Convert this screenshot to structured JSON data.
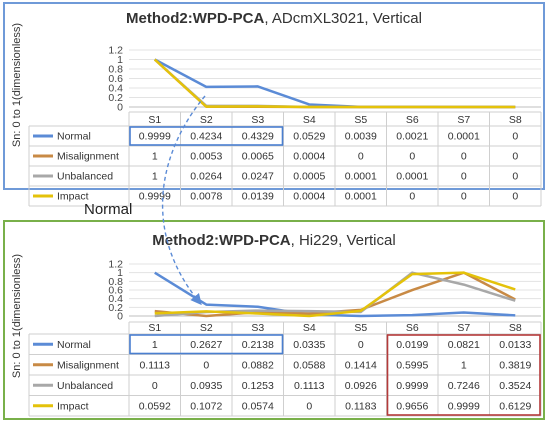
{
  "annotations": {
    "normal_label": "Normal"
  },
  "colors": {
    "Normal": "#5b8bd6",
    "Misalignment": "#c88a45",
    "Unbalanced": "#a8a8a8",
    "Impact": "#e4c20a",
    "highlight_blue": "#4a7fd0",
    "highlight_red": "#b53a3a"
  },
  "chart_data": [
    {
      "type": "line",
      "title_bold": "Method2:WPD-PCA",
      "title_rest": ", ADcmXL3021, Vertical",
      "ylabel": "Sn: 0  to 1(dimensionless)",
      "categories": [
        "S1",
        "S2",
        "S3",
        "S4",
        "S5",
        "S6",
        "S7",
        "S8"
      ],
      "yticks": [
        "1.2",
        "1",
        "0.8",
        "0.6",
        "0.4",
        "0.2",
        "0"
      ],
      "ylim": [
        0,
        1.2
      ],
      "series": [
        {
          "name": "Normal",
          "values": [
            0.9999,
            0.4234,
            0.4329,
            0.0529,
            0.0039,
            0.0021,
            0.0001,
            0
          ],
          "labels": [
            "0.9999",
            "0.4234",
            "0.4329",
            "0.0529",
            "0.0039",
            "0.0021",
            "0.0001",
            "0"
          ]
        },
        {
          "name": "Misalignment",
          "values": [
            1,
            0.0053,
            0.0065,
            0.0004,
            0,
            0,
            0,
            0
          ],
          "labels": [
            "1",
            "0.0053",
            "0.0065",
            "0.0004",
            "0",
            "0",
            "0",
            "0"
          ]
        },
        {
          "name": "Unbalanced",
          "values": [
            1,
            0.0264,
            0.0247,
            0.0005,
            0.0001,
            0.0001,
            0,
            0
          ],
          "labels": [
            "1",
            "0.0264",
            "0.0247",
            "0.0005",
            "0.0001",
            "0.0001",
            "0",
            "0"
          ]
        },
        {
          "name": "Impact",
          "values": [
            0.9999,
            0.0078,
            0.0139,
            0.0004,
            0.0001,
            0,
            0,
            0
          ],
          "labels": [
            "0.9999",
            "0.0078",
            "0.0139",
            "0.0004",
            "0.0001",
            "0",
            "0",
            "0"
          ]
        }
      ],
      "highlight_blue": {
        "series": "Normal",
        "from": "S1",
        "to": "S3"
      }
    },
    {
      "type": "line",
      "title_bold": "Method2:WPD-PCA",
      "title_rest": ", Hi229, Vertical",
      "ylabel": "Sn: 0  to 1(dimensionless)",
      "categories": [
        "S1",
        "S2",
        "S3",
        "S4",
        "S5",
        "S6",
        "S7",
        "S8"
      ],
      "yticks": [
        "1.2",
        "1",
        "0.8",
        "0.6",
        "0.4",
        "0.2",
        "0"
      ],
      "ylim": [
        0,
        1.2
      ],
      "series": [
        {
          "name": "Normal",
          "values": [
            1,
            0.2627,
            0.2138,
            0.0335,
            0,
            0.0199,
            0.0821,
            0.0133
          ],
          "labels": [
            "1",
            "0.2627",
            "0.2138",
            "0.0335",
            "0",
            "0.0199",
            "0.0821",
            "0.0133"
          ]
        },
        {
          "name": "Misalignment",
          "values": [
            0.1113,
            0,
            0.0882,
            0.0588,
            0.1414,
            0.5995,
            1,
            0.3819
          ],
          "labels": [
            "0.1113",
            "0",
            "0.0882",
            "0.0588",
            "0.1414",
            "0.5995",
            "1",
            "0.3819"
          ]
        },
        {
          "name": "Unbalanced",
          "values": [
            0,
            0.0935,
            0.1253,
            0.1113,
            0.0926,
            0.9999,
            0.7246,
            0.3524
          ],
          "labels": [
            "0",
            "0.0935",
            "0.1253",
            "0.1113",
            "0.0926",
            "0.9999",
            "0.7246",
            "0.3524"
          ]
        },
        {
          "name": "Impact",
          "values": [
            0.0592,
            0.1072,
            0.0574,
            0,
            0.1183,
            0.9656,
            0.9999,
            0.6129
          ],
          "labels": [
            "0.0592",
            "0.1072",
            "0.0574",
            "0",
            "0.1183",
            "0.9656",
            "0.9999",
            "0.6129"
          ]
        }
      ],
      "highlight_blue": {
        "series": "Normal",
        "from": "S1",
        "to": "S3"
      },
      "highlight_red": {
        "from": "S6",
        "to": "S8"
      }
    }
  ]
}
